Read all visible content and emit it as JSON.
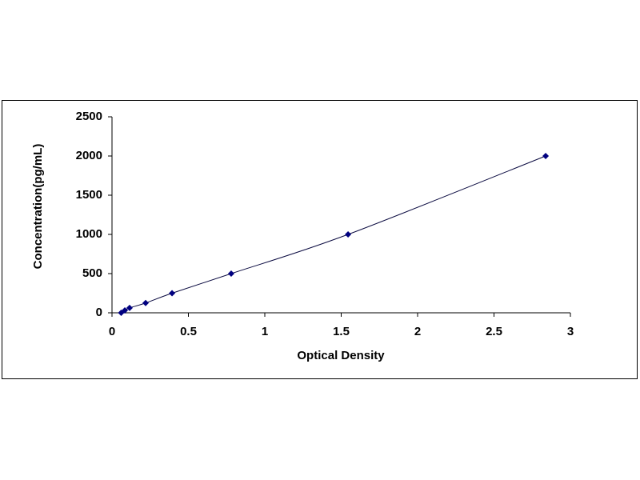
{
  "chart_data": {
    "type": "scatter",
    "x_label": "Optical Density",
    "y_label": "Concentration(pg/mL)",
    "x": [
      0.06,
      0.084,
      0.115,
      0.22,
      0.393,
      0.78,
      1.545,
      2.838
    ],
    "values": [
      0,
      31.25,
      62.5,
      125,
      250,
      500,
      1000,
      2000
    ],
    "color": "#000080",
    "line_color": "#0a0a40",
    "marker": "diamond",
    "smooth_line": true,
    "xlim": [
      0,
      3
    ],
    "xticks": [
      0,
      0.5,
      1,
      1.5,
      2,
      2.5,
      3
    ],
    "ylim": [
      0,
      2500
    ],
    "yticks": [
      0,
      500,
      1000,
      1500,
      2000,
      2500
    ],
    "grid": false
  }
}
